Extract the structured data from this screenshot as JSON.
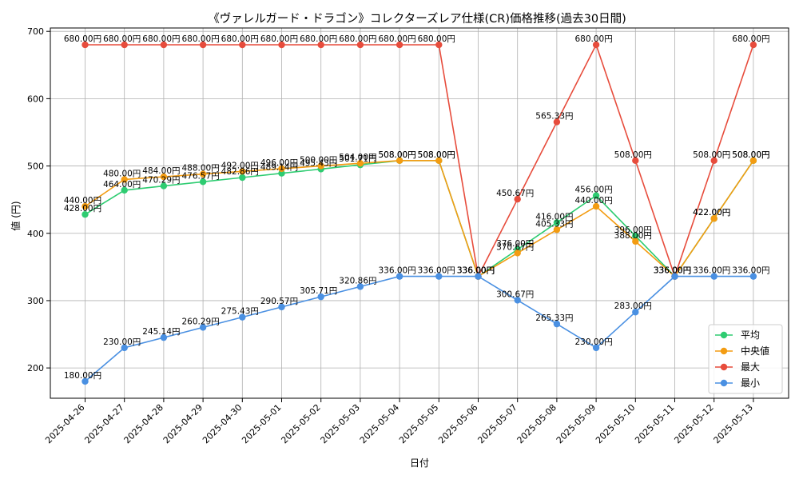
{
  "chart_data": {
    "type": "line",
    "title": "《ヴァレルガード・ドラゴン》コレクターズレア仕様(CR)価格推移(過去30日間)",
    "xlabel": "日付",
    "ylabel": "値 (円)",
    "categories": [
      "2025-04-26",
      "2025-04-27",
      "2025-04-28",
      "2025-04-29",
      "2025-04-30",
      "2025-05-01",
      "2025-05-02",
      "2025-05-03",
      "2025-05-04",
      "2025-05-05",
      "2025-05-06",
      "2025-05-07",
      "2025-05-08",
      "2025-05-09",
      "2025-05-10",
      "2025-05-11",
      "2025-05-12",
      "2025-05-13"
    ],
    "yticks": [
      200,
      300,
      400,
      500,
      600,
      700
    ],
    "ylim": [
      155,
      705
    ],
    "grid": true,
    "legend": "bottom-right",
    "value_suffix": "円",
    "series": [
      {
        "name": "平均",
        "color": "#2ecc71",
        "values": [
          428.0,
          464.0,
          470.29,
          476.57,
          482.86,
          489.14,
          495.43,
          501.71,
          508.0,
          508.0,
          336.0,
          376.0,
          416.0,
          456.0,
          396.0,
          336.0,
          422.0,
          508.0
        ]
      },
      {
        "name": "中央値",
        "color": "#f39c12",
        "values": [
          440.0,
          480.0,
          484.0,
          488.0,
          492.0,
          496.0,
          500.0,
          504.0,
          508.0,
          508.0,
          336.0,
          370.67,
          405.33,
          440.0,
          388.0,
          336.0,
          422.0,
          508.0
        ]
      },
      {
        "name": "最大",
        "color": "#e74c3c",
        "values": [
          680.0,
          680.0,
          680.0,
          680.0,
          680.0,
          680.0,
          680.0,
          680.0,
          680.0,
          680.0,
          336.0,
          450.67,
          565.33,
          680.0,
          508.0,
          336.0,
          508.0,
          680.0
        ]
      },
      {
        "name": "最小",
        "color": "#4a90e2",
        "values": [
          180.0,
          230.0,
          245.14,
          260.29,
          275.43,
          290.57,
          305.71,
          320.86,
          336.0,
          336.0,
          336.0,
          300.67,
          265.33,
          230.0,
          283.0,
          336.0,
          336.0,
          336.0
        ]
      }
    ]
  }
}
